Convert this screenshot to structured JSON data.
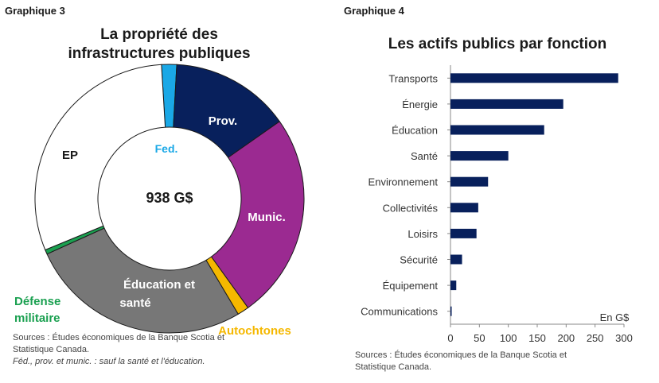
{
  "left": {
    "panel_label": "Graphique 3",
    "title_line1": "La propriété des",
    "title_line2": "infrastructures publiques",
    "center_label": "938 G$",
    "source_line1": "Sources : Études économiques de la Banque Scotia et",
    "source_line2": "Statistique Canada.",
    "note": "Féd., prov. et munic. : sauf la santé et l'éducation."
  },
  "right": {
    "panel_label": "Graphique 4",
    "title": "Les actifs publics par fonction",
    "unit_label": "En G$",
    "source_line1": "Sources : Études économiques de la Banque Scotia et",
    "source_line2": "Statistique Canada."
  },
  "chart_data": [
    {
      "type": "pie",
      "title": "La propriété des infrastructures publiques",
      "center_label": "938 G$",
      "slices": [
        {
          "name": "Fed.",
          "value": 17,
          "color": "#1aa8e6",
          "label_color": "#1aa8e6"
        },
        {
          "name": "Prov.",
          "value": 135,
          "color": "#08205c",
          "label_color": "#ffffff"
        },
        {
          "name": "Munic.",
          "value": 233,
          "color": "#9b2a91",
          "label_color": "#ffffff"
        },
        {
          "name": "Autochtones",
          "value": 13,
          "color": "#f5b800",
          "label_color": "#f5b800"
        },
        {
          "name": "Éducation et santé",
          "value": 251,
          "color": "#777777",
          "label_color": "#ffffff"
        },
        {
          "name": "Défense militaire",
          "value": 5,
          "color": "#1aa050",
          "label_color": "#1aa050"
        },
        {
          "name": "EP",
          "value": 284,
          "color": "#ffffff",
          "label_color": "#1a1a1a"
        }
      ]
    },
    {
      "type": "bar",
      "orientation": "horizontal",
      "title": "Les actifs publics par fonction",
      "categories": [
        "Transports",
        "Énergie",
        "Éducation",
        "Santé",
        "Environnement",
        "Collectivités",
        "Loisirs",
        "Sécurité",
        "Équipement",
        "Communications"
      ],
      "values": [
        290,
        195,
        162,
        100,
        65,
        48,
        45,
        20,
        10,
        2
      ],
      "xlabel": "En G$",
      "xlim": [
        0,
        300
      ],
      "xticks": [
        "0",
        "50",
        "100",
        "150",
        "200",
        "250",
        "300"
      ],
      "color": "#08205c"
    }
  ]
}
